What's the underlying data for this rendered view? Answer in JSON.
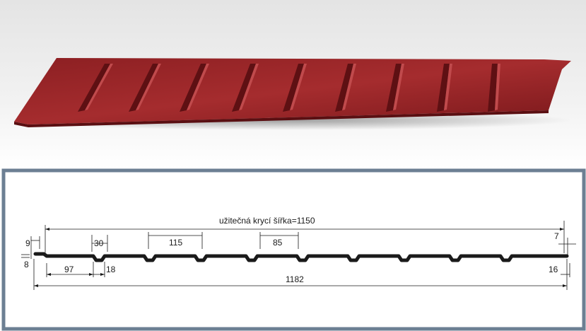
{
  "colors": {
    "sheet": "#7e1a1c",
    "sheet_light": "#a83234",
    "frame": "#6c7f93",
    "line": "#1a1a1a"
  },
  "dimensions": {
    "useful_width": "užitečná krycí šířka=1150",
    "total_width": "1182",
    "edge_offset": "9",
    "rib_top": "30",
    "rib_spacing": "115",
    "pan_width": "85",
    "right_edge": "7",
    "pan_bottom": "97",
    "rib_bottom": "18",
    "right_bottom": "16",
    "thickness": "8"
  }
}
